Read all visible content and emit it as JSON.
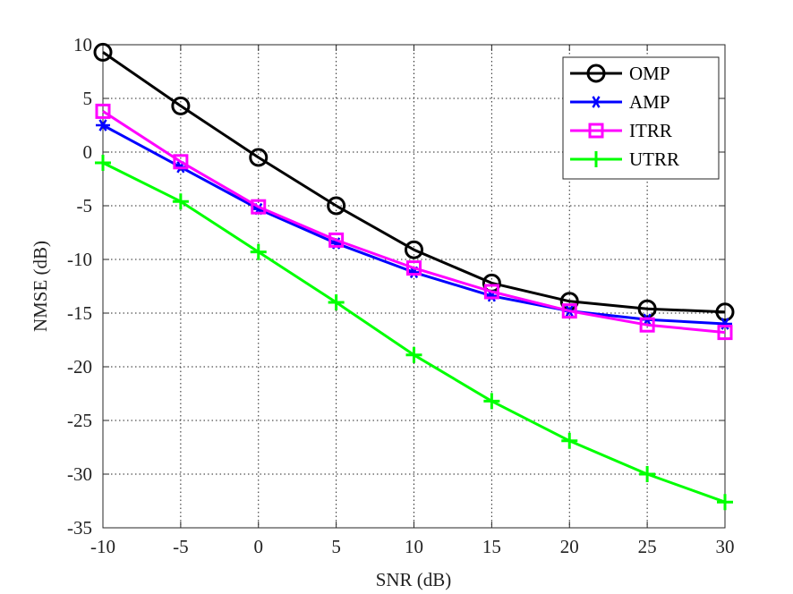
{
  "chart_data": {
    "type": "line",
    "title": "",
    "xlabel": "SNR (dB)",
    "ylabel": "NMSE (dB)",
    "x": [
      -10,
      -5,
      0,
      5,
      10,
      15,
      20,
      25,
      30
    ],
    "xlim": [
      -10,
      30
    ],
    "ylim": [
      -35,
      10
    ],
    "xticks": [
      -10,
      -5,
      0,
      5,
      10,
      15,
      20,
      25,
      30
    ],
    "yticks": [
      10,
      5,
      0,
      -5,
      -10,
      -15,
      -20,
      -25,
      -30,
      -35
    ],
    "grid": true,
    "legend_position": "top-right",
    "series": [
      {
        "name": "OMP",
        "color": "#000000",
        "marker": "circle",
        "values": [
          9.3,
          4.3,
          -0.5,
          -5.0,
          -9.1,
          -12.2,
          -13.9,
          -14.6,
          -14.9
        ]
      },
      {
        "name": "AMP",
        "color": "#0000ff",
        "marker": "asterisk",
        "values": [
          2.5,
          -1.4,
          -5.3,
          -8.5,
          -11.2,
          -13.4,
          -14.8,
          -15.6,
          -16.0
        ]
      },
      {
        "name": "ITRR",
        "color": "#ff00ff",
        "marker": "square",
        "values": [
          3.8,
          -0.9,
          -5.1,
          -8.2,
          -10.8,
          -13.0,
          -14.8,
          -16.1,
          -16.8
        ]
      },
      {
        "name": "UTRR",
        "color": "#00ff00",
        "marker": "plus",
        "values": [
          -1.0,
          -4.6,
          -9.3,
          -14.0,
          -18.9,
          -23.2,
          -26.9,
          -30.0,
          -32.6
        ]
      }
    ]
  }
}
